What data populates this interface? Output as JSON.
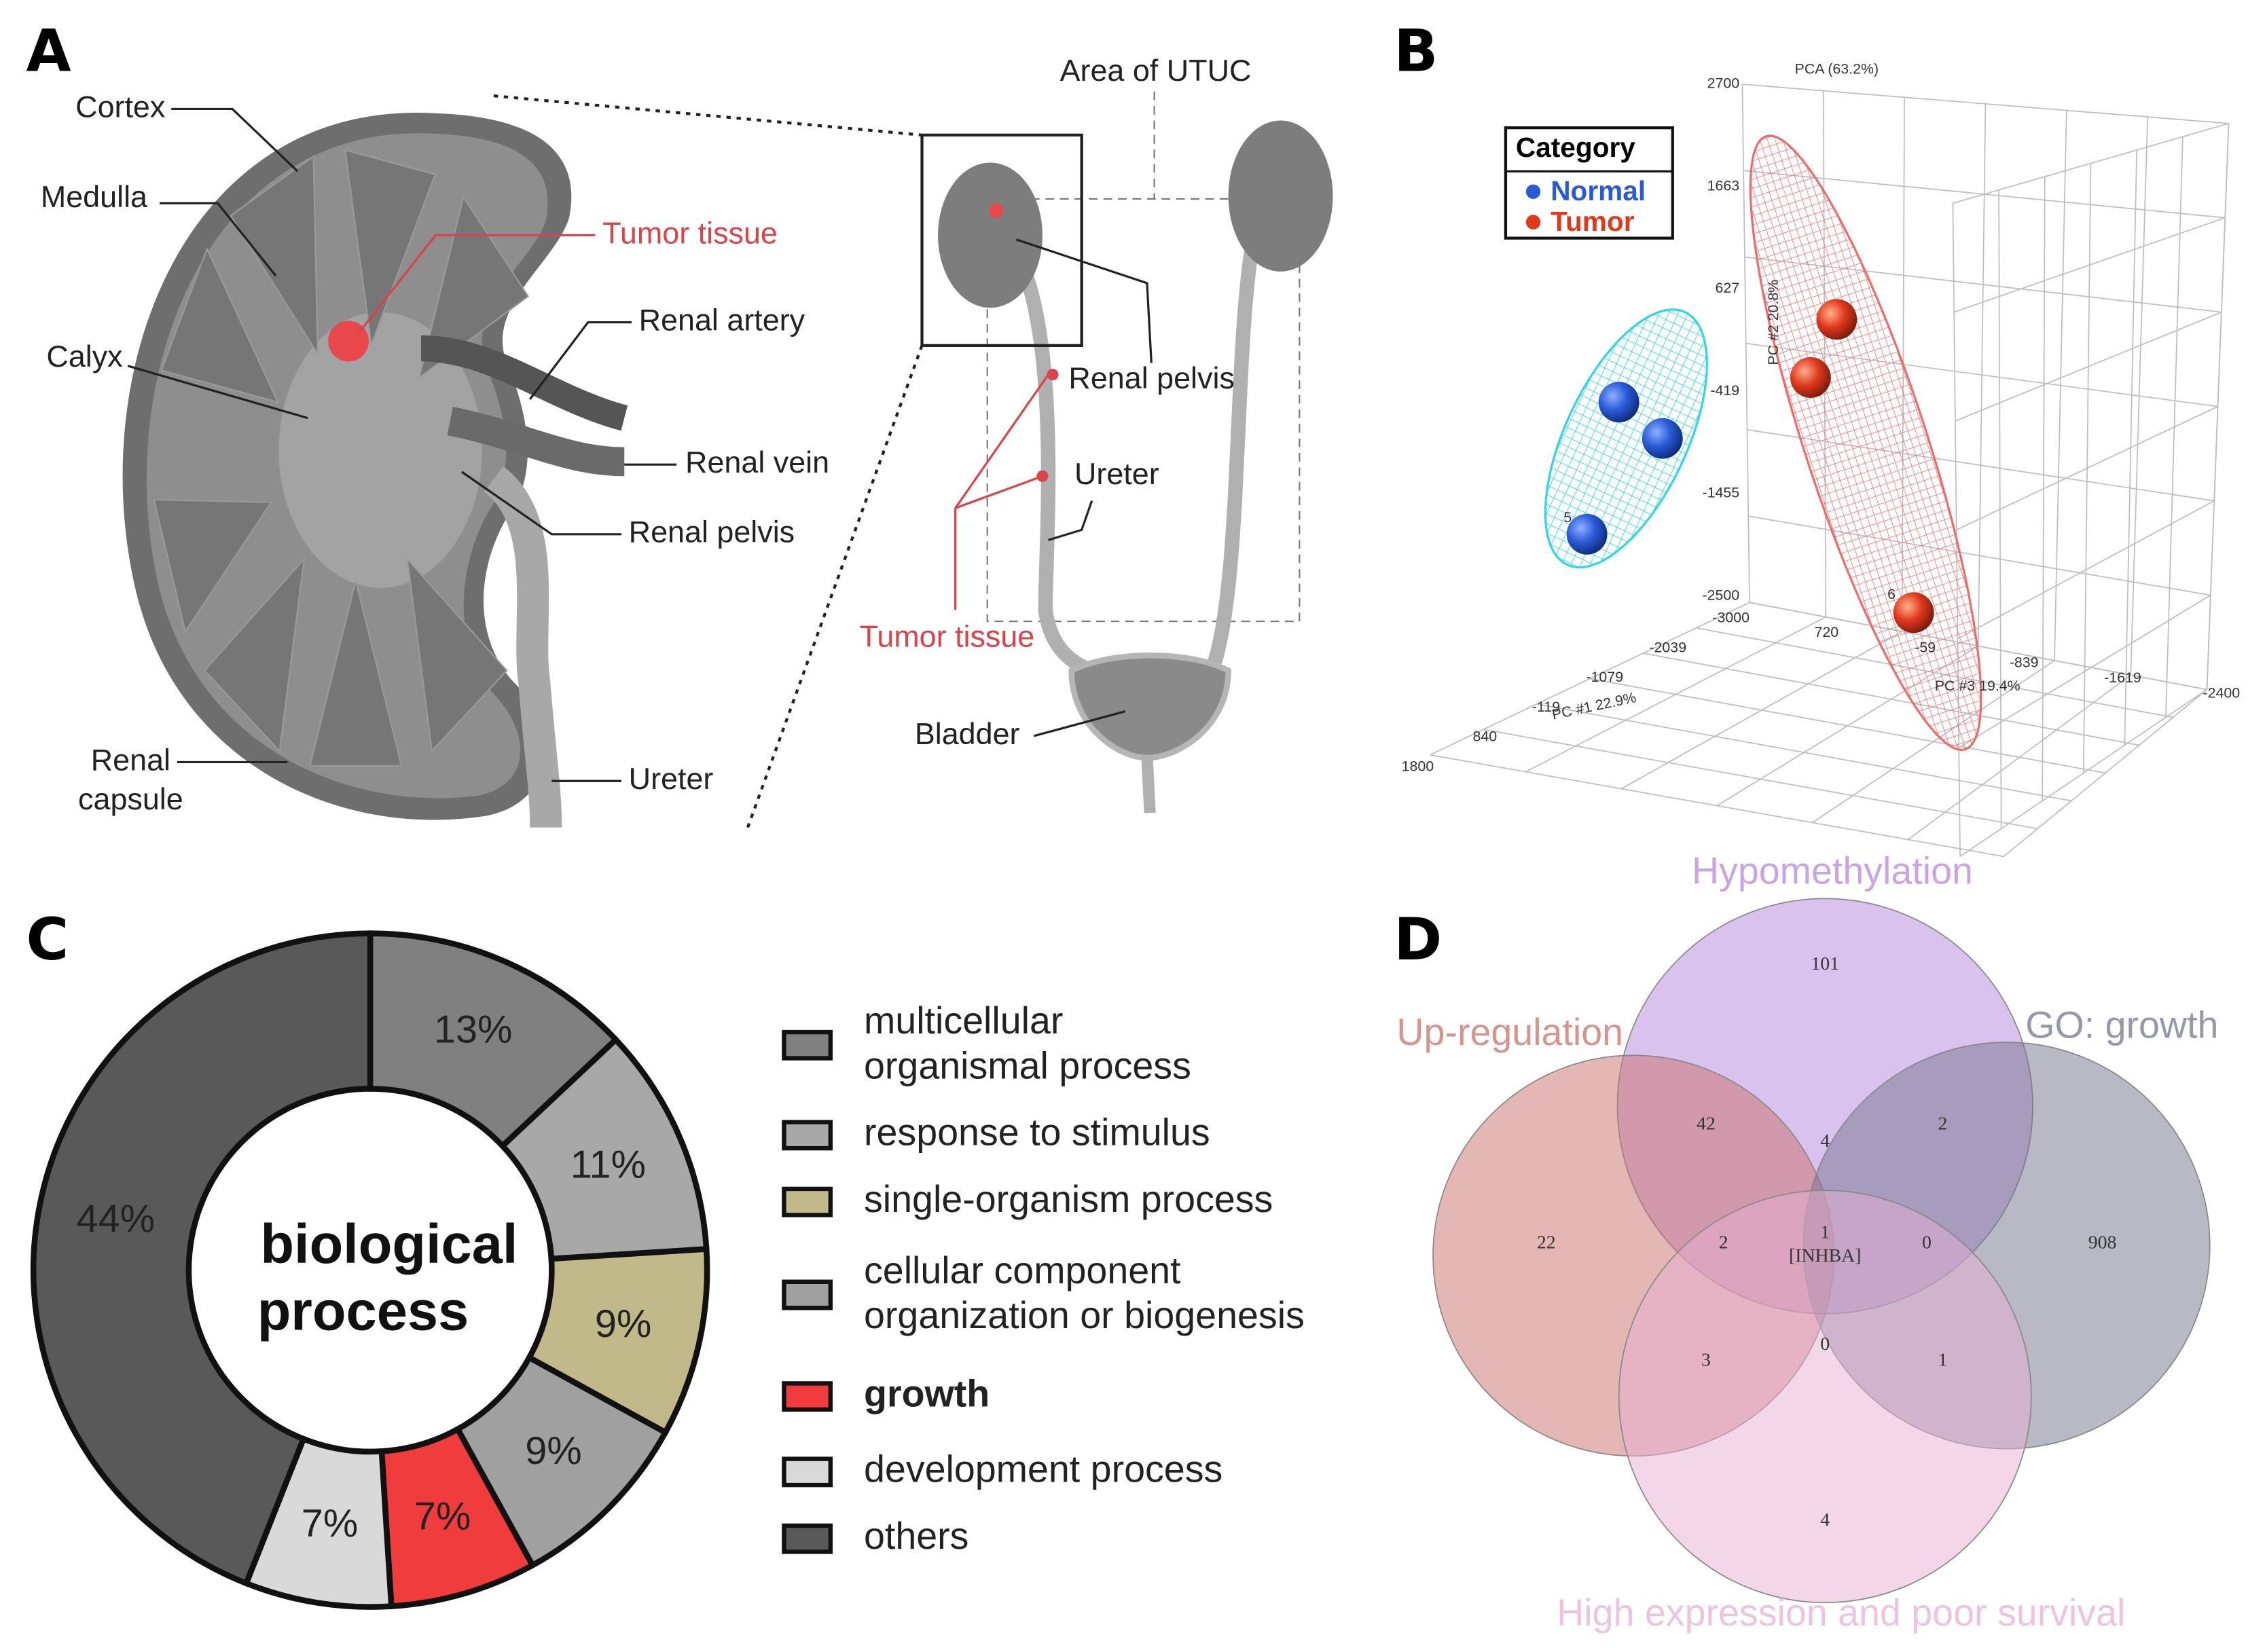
{
  "panels": [
    "A",
    "B",
    "C",
    "D"
  ],
  "kidney_labels": [
    "Cortex",
    "Medulla",
    "Tumor tissue",
    "Renal artery",
    "Calyx",
    "Renal vein",
    "Renal pelvis",
    "Renal\ncapsule",
    "Ureter"
  ],
  "urinary_labels": [
    "Area of UTUC",
    "Renal pelvis",
    "Ureter",
    "Tumor tissue",
    "Bladder"
  ],
  "pca": {
    "title": "PCA (63.2%)",
    "legend_title": "Category",
    "groups": [
      {
        "name": "Normal",
        "color": "#2a5bd7"
      },
      {
        "name": "Tumor",
        "color": "#e0391c"
      }
    ],
    "pc2_ticks": [
      2700,
      1663,
      627,
      -419,
      -1455,
      -2500
    ],
    "pc1_ticks": [
      -3000,
      -2039,
      -1079,
      -119,
      840,
      1800
    ],
    "pc3_ticks": [
      720,
      -59,
      -839,
      -1619,
      -2400
    ],
    "axis_titles": [
      "PC #2 20.8%",
      "PC #1 22.9%",
      "PC #3 19.4%"
    ],
    "point_labels": [
      "5",
      "6"
    ]
  },
  "chart_data": {
    "type": "pie",
    "donut": true,
    "center_label": [
      "biological",
      "process"
    ],
    "categories": [
      "multicellular\norganismal process",
      "response to stimulus",
      "single-organism process",
      "cellular component\norganization or biogenesis",
      "growth",
      "development process",
      "others"
    ],
    "values": [
      13,
      11,
      9,
      9,
      7,
      7,
      44
    ],
    "value_labels": [
      "13%",
      "11%",
      "9%",
      "9%",
      "7%",
      "7%",
      "44%"
    ],
    "colors": [
      "#808080",
      "#a8a8a8",
      "#c2b98a",
      "#a0a0a0",
      "#f03c3c",
      "#d9d9d9",
      "#595959"
    ]
  },
  "venn": {
    "sets": [
      {
        "name": "Hypomethylation",
        "color": "#b685dd"
      },
      {
        "name": "Up-regulation",
        "color": "#c9706a"
      },
      {
        "name": "GO: growth",
        "color": "#74748e"
      },
      {
        "name": "High expression and poor survival",
        "color": "#e7b0d4"
      }
    ],
    "counts": [
      101,
      42,
      4,
      2,
      22,
      2,
      1,
      0,
      908,
      3,
      0,
      1,
      4
    ],
    "gene": "[INHBA]"
  }
}
